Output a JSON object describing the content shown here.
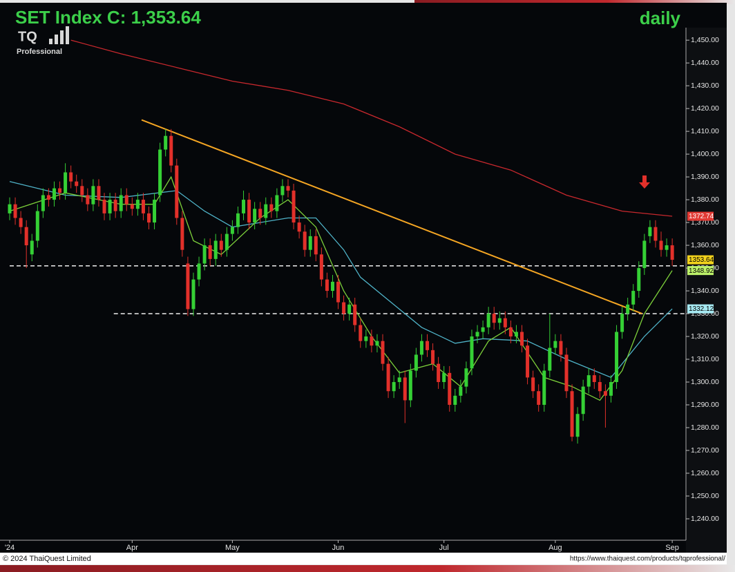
{
  "chart_data": {
    "type": "candlestick",
    "title": "SET Index C: 1,353.64",
    "period": "daily",
    "logo": {
      "text": "TQ",
      "subtitle": "Professional"
    },
    "footer": {
      "left": "© 2024 ThaiQuest Limited",
      "right": "https://www.thaiquest.com/products/tqprofessional/"
    },
    "up_color": "#35d035",
    "down_color": "#e2302a",
    "categories": [
      "'24",
      null,
      null,
      null,
      null,
      null,
      null,
      null,
      null,
      null,
      null,
      null,
      null,
      null,
      null,
      null,
      null,
      null,
      null,
      null,
      null,
      null,
      "Apr",
      null,
      null,
      null,
      null,
      null,
      null,
      null,
      null,
      null,
      null,
      null,
      null,
      null,
      null,
      null,
      null,
      null,
      "May",
      null,
      null,
      null,
      null,
      null,
      null,
      null,
      null,
      null,
      null,
      null,
      null,
      null,
      null,
      null,
      null,
      null,
      null,
      "Jun",
      null,
      null,
      null,
      null,
      null,
      null,
      null,
      null,
      null,
      null,
      null,
      null,
      null,
      null,
      null,
      null,
      null,
      null,
      "Jul",
      null,
      null,
      null,
      null,
      null,
      null,
      null,
      null,
      null,
      null,
      null,
      null,
      null,
      null,
      null,
      null,
      null,
      null,
      null,
      "Aug",
      null,
      null,
      null,
      null,
      null,
      null,
      null,
      null,
      null,
      null,
      null,
      null,
      null,
      null,
      null,
      null,
      null,
      null,
      null,
      null,
      "Sep"
    ],
    "open": [
      1374,
      1378,
      1372,
      1368,
      1356,
      1362,
      1375,
      1382,
      1380,
      1385,
      1383,
      1392,
      1388,
      1386,
      1382,
      1378,
      1386,
      1380,
      1374,
      1380,
      1375,
      1382,
      1378,
      1376,
      1380,
      1374,
      1370,
      1382,
      1402,
      1408,
      1395,
      1372,
      1352,
      1332,
      1345,
      1352,
      1360,
      1354,
      1362,
      1358,
      1365,
      1368,
      1374,
      1380,
      1370,
      1376,
      1372,
      1378,
      1375,
      1382,
      1386,
      1384,
      1370,
      1366,
      1358,
      1364,
      1356,
      1345,
      1340,
      1344,
      1335,
      1330,
      1334,
      1325,
      1318,
      1320,
      1316,
      1318,
      1308,
      1296,
      1300,
      1302,
      1292,
      1305,
      1312,
      1318,
      1314,
      1308,
      1300,
      1304,
      1290,
      1294,
      1298,
      1306,
      1320,
      1322,
      1324,
      1330,
      1326,
      1328,
      1324,
      1320,
      1322,
      1316,
      1302,
      1296,
      1290,
      1305,
      1315,
      1318,
      1312,
      1296,
      1276,
      1286,
      1298,
      1303,
      1300,
      1296,
      1294,
      1300,
      1322,
      1330,
      1334,
      1340,
      1350,
      1364,
      1368,
      1362,
      1358,
      1360
    ],
    "high": [
      1381,
      1381,
      1375,
      1371,
      1365,
      1378,
      1385,
      1385,
      1388,
      1388,
      1396,
      1395,
      1391,
      1389,
      1385,
      1389,
      1389,
      1383,
      1383,
      1383,
      1385,
      1385,
      1381,
      1383,
      1383,
      1377,
      1383,
      1405,
      1411,
      1411,
      1398,
      1375,
      1355,
      1348,
      1355,
      1363,
      1363,
      1365,
      1365,
      1368,
      1371,
      1377,
      1384,
      1383,
      1379,
      1379,
      1381,
      1381,
      1385,
      1389,
      1389,
      1387,
      1373,
      1369,
      1367,
      1367,
      1359,
      1348,
      1347,
      1347,
      1338,
      1337,
      1337,
      1328,
      1323,
      1323,
      1321,
      1321,
      1311,
      1303,
      1305,
      1305,
      1308,
      1315,
      1321,
      1321,
      1317,
      1311,
      1307,
      1307,
      1297,
      1301,
      1309,
      1323,
      1325,
      1327,
      1333,
      1333,
      1331,
      1331,
      1327,
      1325,
      1325,
      1319,
      1305,
      1299,
      1308,
      1330,
      1321,
      1321,
      1315,
      1299,
      1289,
      1301,
      1306,
      1306,
      1303,
      1299,
      1303,
      1325,
      1333,
      1337,
      1343,
      1353,
      1365,
      1371,
      1371,
      1366,
      1363,
      1363
    ],
    "low": [
      1371,
      1369,
      1365,
      1350,
      1353,
      1359,
      1372,
      1377,
      1377,
      1380,
      1380,
      1385,
      1383,
      1379,
      1375,
      1375,
      1377,
      1371,
      1371,
      1372,
      1372,
      1375,
      1373,
      1373,
      1371,
      1367,
      1367,
      1379,
      1399,
      1392,
      1369,
      1355,
      1329,
      1329,
      1342,
      1349,
      1351,
      1351,
      1355,
      1355,
      1362,
      1365,
      1371,
      1367,
      1367,
      1369,
      1369,
      1372,
      1372,
      1379,
      1381,
      1367,
      1363,
      1355,
      1355,
      1353,
      1342,
      1337,
      1337,
      1332,
      1327,
      1327,
      1322,
      1315,
      1315,
      1313,
      1313,
      1305,
      1293,
      1293,
      1297,
      1282,
      1289,
      1302,
      1309,
      1311,
      1305,
      1297,
      1297,
      1287,
      1287,
      1291,
      1295,
      1303,
      1317,
      1319,
      1321,
      1323,
      1323,
      1321,
      1317,
      1317,
      1313,
      1299,
      1293,
      1287,
      1287,
      1302,
      1312,
      1309,
      1293,
      1274,
      1273,
      1283,
      1295,
      1297,
      1293,
      1280,
      1291,
      1297,
      1319,
      1327,
      1331,
      1337,
      1347,
      1361,
      1359,
      1355,
      1355,
      1351
    ],
    "close": [
      1378,
      1372,
      1368,
      1360,
      1362,
      1375,
      1382,
      1380,
      1385,
      1383,
      1392,
      1388,
      1386,
      1382,
      1378,
      1386,
      1380,
      1374,
      1380,
      1375,
      1382,
      1378,
      1376,
      1380,
      1374,
      1370,
      1380,
      1402,
      1408,
      1395,
      1372,
      1358,
      1332,
      1345,
      1352,
      1360,
      1354,
      1362,
      1358,
      1365,
      1368,
      1374,
      1380,
      1370,
      1376,
      1372,
      1378,
      1375,
      1382,
      1386,
      1384,
      1370,
      1366,
      1358,
      1364,
      1356,
      1345,
      1340,
      1344,
      1335,
      1330,
      1334,
      1325,
      1318,
      1320,
      1316,
      1318,
      1308,
      1296,
      1300,
      1302,
      1292,
      1305,
      1312,
      1318,
      1314,
      1308,
      1300,
      1304,
      1290,
      1294,
      1298,
      1306,
      1320,
      1322,
      1324,
      1330,
      1326,
      1328,
      1324,
      1320,
      1322,
      1316,
      1302,
      1296,
      1290,
      1305,
      1315,
      1318,
      1312,
      1296,
      1276,
      1286,
      1298,
      1303,
      1300,
      1296,
      1294,
      1300,
      1322,
      1330,
      1334,
      1340,
      1350,
      1362,
      1368,
      1362,
      1358,
      1360,
      1353.64
    ],
    "close_tag_color": "#f2d21c",
    "overlays": [
      {
        "color": "#c8282d",
        "tag_color": "#e23a34",
        "x": [
          11,
          20,
          30,
          40,
          50,
          60,
          70,
          80,
          90,
          100,
          110,
          119
        ],
        "values": [
          1450,
          1444,
          1438,
          1432,
          1428,
          1422,
          1412,
          1400,
          1393,
          1382,
          1375,
          1372.74
        ]
      },
      {
        "color": "#4fb3c8",
        "tag_color": "#a6e9f2",
        "x": [
          0,
          10,
          20,
          30,
          35,
          40,
          50,
          55,
          60,
          63,
          69,
          74,
          80,
          85,
          93,
          100,
          108,
          114,
          119
        ],
        "values": [
          1388,
          1382,
          1381,
          1384,
          1375,
          1368,
          1372,
          1372,
          1358,
          1346,
          1334,
          1324,
          1317,
          1319,
          1318,
          1310,
          1302,
          1320,
          1332.12
        ]
      },
      {
        "color": "#7ccf3a",
        "tag_color": "#bdf26a",
        "x": [
          0,
          10,
          20,
          26,
          29,
          33,
          38,
          45,
          50,
          55,
          60,
          65,
          70,
          76,
          81,
          86,
          90,
          96,
          101,
          106,
          110,
          114,
          119
        ],
        "values": [
          1375,
          1383,
          1378,
          1378,
          1390,
          1362,
          1356,
          1372,
          1380,
          1368,
          1340,
          1320,
          1304,
          1308,
          1298,
          1318,
          1324,
          1302,
          1298,
          1292,
          1305,
          1330,
          1348.92
        ]
      }
    ],
    "trendline": {
      "color": "#f5a623",
      "x": [
        23.7,
        113.6
      ],
      "values": [
        1415,
        1330
      ]
    },
    "levels": [
      {
        "value": 1351,
        "x_start": 0
      },
      {
        "value": 1330,
        "x_start": 18.7
      }
    ],
    "ylim": [
      1230.6,
      1455.5
    ],
    "yticks": [
      {
        "value": 1240,
        "label": "1,240.00"
      },
      {
        "value": 1250,
        "label": "1,250.00"
      },
      {
        "value": 1260,
        "label": "1,260.00"
      },
      {
        "value": 1270,
        "label": "1,270.00"
      },
      {
        "value": 1280,
        "label": "1,280.00"
      },
      {
        "value": 1290,
        "label": "1,290.00"
      },
      {
        "value": 1300,
        "label": "1,300.00"
      },
      {
        "value": 1310,
        "label": "1,310.00"
      },
      {
        "value": 1320,
        "label": "1,320.00"
      },
      {
        "value": 1330,
        "label": "1,330.00"
      },
      {
        "value": 1340,
        "label": "1,340.00"
      },
      {
        "value": 1350,
        "label": "1,350.00"
      },
      {
        "value": 1360,
        "label": "1,360.00"
      },
      {
        "value": 1370,
        "label": "1,370.00"
      },
      {
        "value": 1380,
        "label": "1,380.00"
      },
      {
        "value": 1390,
        "label": "1,390.00"
      },
      {
        "value": 1400,
        "label": "1,400.00"
      },
      {
        "value": 1410,
        "label": "1,410.00"
      },
      {
        "value": 1420,
        "label": "1,420.00"
      },
      {
        "value": 1430,
        "label": "1,430.00"
      },
      {
        "value": 1440,
        "label": "1,440.00"
      },
      {
        "value": 1450,
        "label": "1,450.00"
      }
    ],
    "grid": false
  }
}
